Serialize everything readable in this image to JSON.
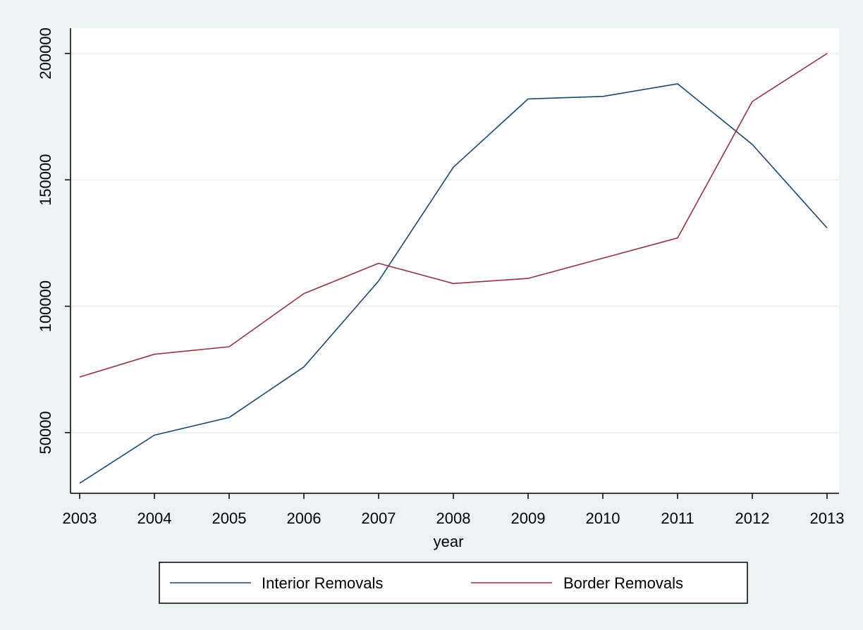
{
  "chart_data": {
    "type": "line",
    "title": "",
    "xlabel": "year",
    "ylabel": "",
    "x": [
      2003,
      2004,
      2005,
      2006,
      2007,
      2008,
      2009,
      2010,
      2011,
      2012,
      2013
    ],
    "xlim": [
      2003,
      2013
    ],
    "ylim": [
      25000,
      202000
    ],
    "yticks": [
      50000,
      100000,
      150000,
      200000
    ],
    "grid": true,
    "legend_position": "bottom",
    "series": [
      {
        "name": "Interior Removals",
        "color": "#1a476f",
        "values": [
          30000,
          49000,
          56000,
          76000,
          110000,
          155000,
          182000,
          183000,
          188000,
          164000,
          131000
        ]
      },
      {
        "name": "Border Removals",
        "color": "#90353b",
        "values": [
          72000,
          81000,
          84000,
          105000,
          117000,
          109000,
          111000,
          119000,
          127000,
          181000,
          200000
        ]
      }
    ]
  }
}
